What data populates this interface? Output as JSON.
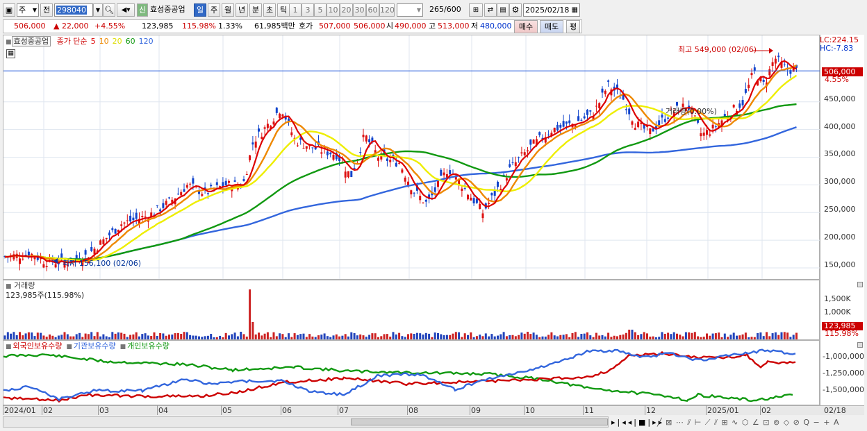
{
  "toolbar": {
    "market": "주",
    "prev_label": "전",
    "code": "298040",
    "sin_label": "신",
    "stock_name": "효성중공업",
    "periods": [
      "일",
      "주",
      "월",
      "년",
      "분",
      "초",
      "틱"
    ],
    "active_period": "일",
    "intervals": [
      "1",
      "3",
      "5",
      "10",
      "20",
      "30",
      "60",
      "120"
    ],
    "count": "265",
    "count_total": "/600",
    "date": "2025/02/18"
  },
  "quote": {
    "price": "506,000",
    "change": "▲  22,000",
    "change_pct": "+4.55%",
    "volume": "123,985",
    "volume_ratio": "115.98%",
    "turnover": "1.33%",
    "amount": "61,985백만",
    "ask_label": "호가",
    "ask1": "507,000",
    "ask2": "506,000",
    "open_label": "시",
    "open": "490,000",
    "high_label": "고",
    "high": "513,000",
    "low_label": "저",
    "low": "480,000",
    "buy_button": "매수",
    "sell_button": "매도",
    "extra_button": "평"
  },
  "price_panel": {
    "legend_name": "효성중공업",
    "legend_items": [
      {
        "label": "종가 단순",
        "color": "#cc0000"
      },
      {
        "label": "5",
        "color": "#dd0000"
      },
      {
        "label": "10",
        "color": "#ee8800"
      },
      {
        "label": "20",
        "color": "#dddd00"
      },
      {
        "label": "60",
        "color": "#119911"
      },
      {
        "label": "120",
        "color": "#3366dd"
      }
    ],
    "lc_label": "LC:224.15",
    "hc_label": "HC:-7.83",
    "high_annotation": "최고 549,000 (02/06)",
    "low_annotation": "최저 156,100 (02/06)",
    "vol_annotation": "거래량(0.00%)",
    "current_price_tag": "506,000",
    "current_pct_tag": "4.55%",
    "y_ticks": [
      "450,000",
      "400,000",
      "350,000",
      "300,000",
      "250,000",
      "200,000",
      "150,000"
    ]
  },
  "volume_panel": {
    "title": "거래량",
    "value": "123,985주(115.98%)",
    "y_ticks": [
      "1,500K",
      "1,000K"
    ],
    "tag_value": "123,985",
    "tag_pct": "115.98%"
  },
  "holding_panel": {
    "legend": [
      {
        "label": "외국인보유수량",
        "color": "#cc0000"
      },
      {
        "label": "기관보유수량",
        "color": "#3366dd"
      },
      {
        "label": "개인보유수량",
        "color": "#119911"
      }
    ],
    "y_ticks": [
      "-1,000,000",
      "-1,250,000",
      "-1,500,000"
    ]
  },
  "x_axis": {
    "labels": [
      "2024/01",
      "02",
      "03",
      "04",
      "05",
      "06",
      "07",
      "08",
      "09",
      "10",
      "11",
      "12",
      "2025/01",
      "02"
    ],
    "right_label": "02/18"
  },
  "chart_data": {
    "type": "line",
    "candles_close_approx": [
      170000,
      168000,
      160000,
      175000,
      185000,
      190000,
      230000,
      240000,
      275000,
      290000,
      300000,
      400000,
      390000,
      360000,
      350000,
      340000,
      385000,
      360000,
      330000,
      270000,
      290000,
      320000,
      300000,
      250000,
      280000,
      330000,
      360000,
      390000,
      400000,
      470000,
      430000,
      390000,
      420000,
      400000,
      450000,
      480000,
      540000,
      506000
    ],
    "x_labels": [
      "2024/01",
      "02",
      "03",
      "04",
      "05",
      "06",
      "07",
      "08",
      "09",
      "10",
      "11",
      "12",
      "2025/01",
      "02"
    ],
    "y_range": [
      140000,
      560000
    ]
  }
}
